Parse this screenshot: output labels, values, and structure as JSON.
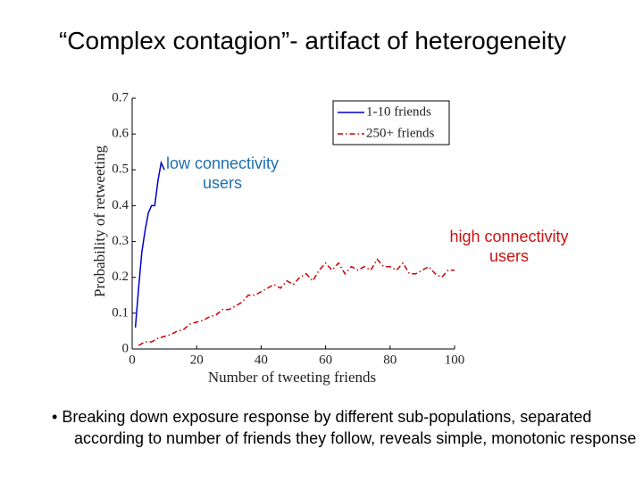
{
  "title": "“Complex contagion”- artifact of heterogeneity",
  "chart_data": {
    "type": "line",
    "xlabel": "Number of tweeting friends",
    "ylabel": "Probability of retweeting",
    "xlim": [
      0,
      100
    ],
    "xticks": [
      0,
      20,
      40,
      60,
      80,
      100
    ],
    "ylim": [
      0,
      0.7
    ],
    "yticks": [
      0,
      0.1,
      0.2,
      0.3,
      0.4,
      0.5,
      0.6,
      0.7
    ],
    "legend": "upper right",
    "series": [
      {
        "name": "1-10 friends",
        "color": "#0000cc",
        "style": "solid",
        "x": [
          1,
          2,
          3,
          4,
          5,
          6,
          7,
          8,
          9,
          10
        ],
        "values": [
          0.06,
          0.17,
          0.27,
          0.33,
          0.38,
          0.4,
          0.4,
          0.47,
          0.52,
          0.5
        ]
      },
      {
        "name": "250+ friends",
        "color": "#cc0000",
        "style": "dashdot",
        "x": [
          2,
          4,
          6,
          8,
          10,
          12,
          14,
          16,
          18,
          20,
          22,
          24,
          26,
          28,
          30,
          32,
          34,
          36,
          38,
          40,
          42,
          44,
          46,
          48,
          50,
          52,
          54,
          56,
          58,
          60,
          62,
          64,
          66,
          68,
          70,
          72,
          74,
          76,
          78,
          80,
          82,
          84,
          86,
          88,
          90,
          92,
          94,
          96,
          98,
          100
        ],
        "values": [
          0.01,
          0.02,
          0.02,
          0.03,
          0.035,
          0.04,
          0.05,
          0.055,
          0.07,
          0.075,
          0.08,
          0.09,
          0.095,
          0.11,
          0.11,
          0.12,
          0.13,
          0.15,
          0.15,
          0.16,
          0.17,
          0.18,
          0.17,
          0.19,
          0.18,
          0.2,
          0.21,
          0.19,
          0.22,
          0.24,
          0.22,
          0.24,
          0.21,
          0.23,
          0.22,
          0.23,
          0.22,
          0.25,
          0.23,
          0.23,
          0.22,
          0.24,
          0.21,
          0.21,
          0.22,
          0.23,
          0.21,
          0.2,
          0.22,
          0.22
        ]
      }
    ],
    "annotations": [
      {
        "text": "low connectivity users",
        "color": "#1f6fb0"
      },
      {
        "text": "high connectivity users",
        "color": "#cc1111"
      }
    ]
  },
  "bullets": [
    "Breaking down exposure response by different sub-populations, separated according to number of friends they follow, reveals simple, monotonic response"
  ]
}
